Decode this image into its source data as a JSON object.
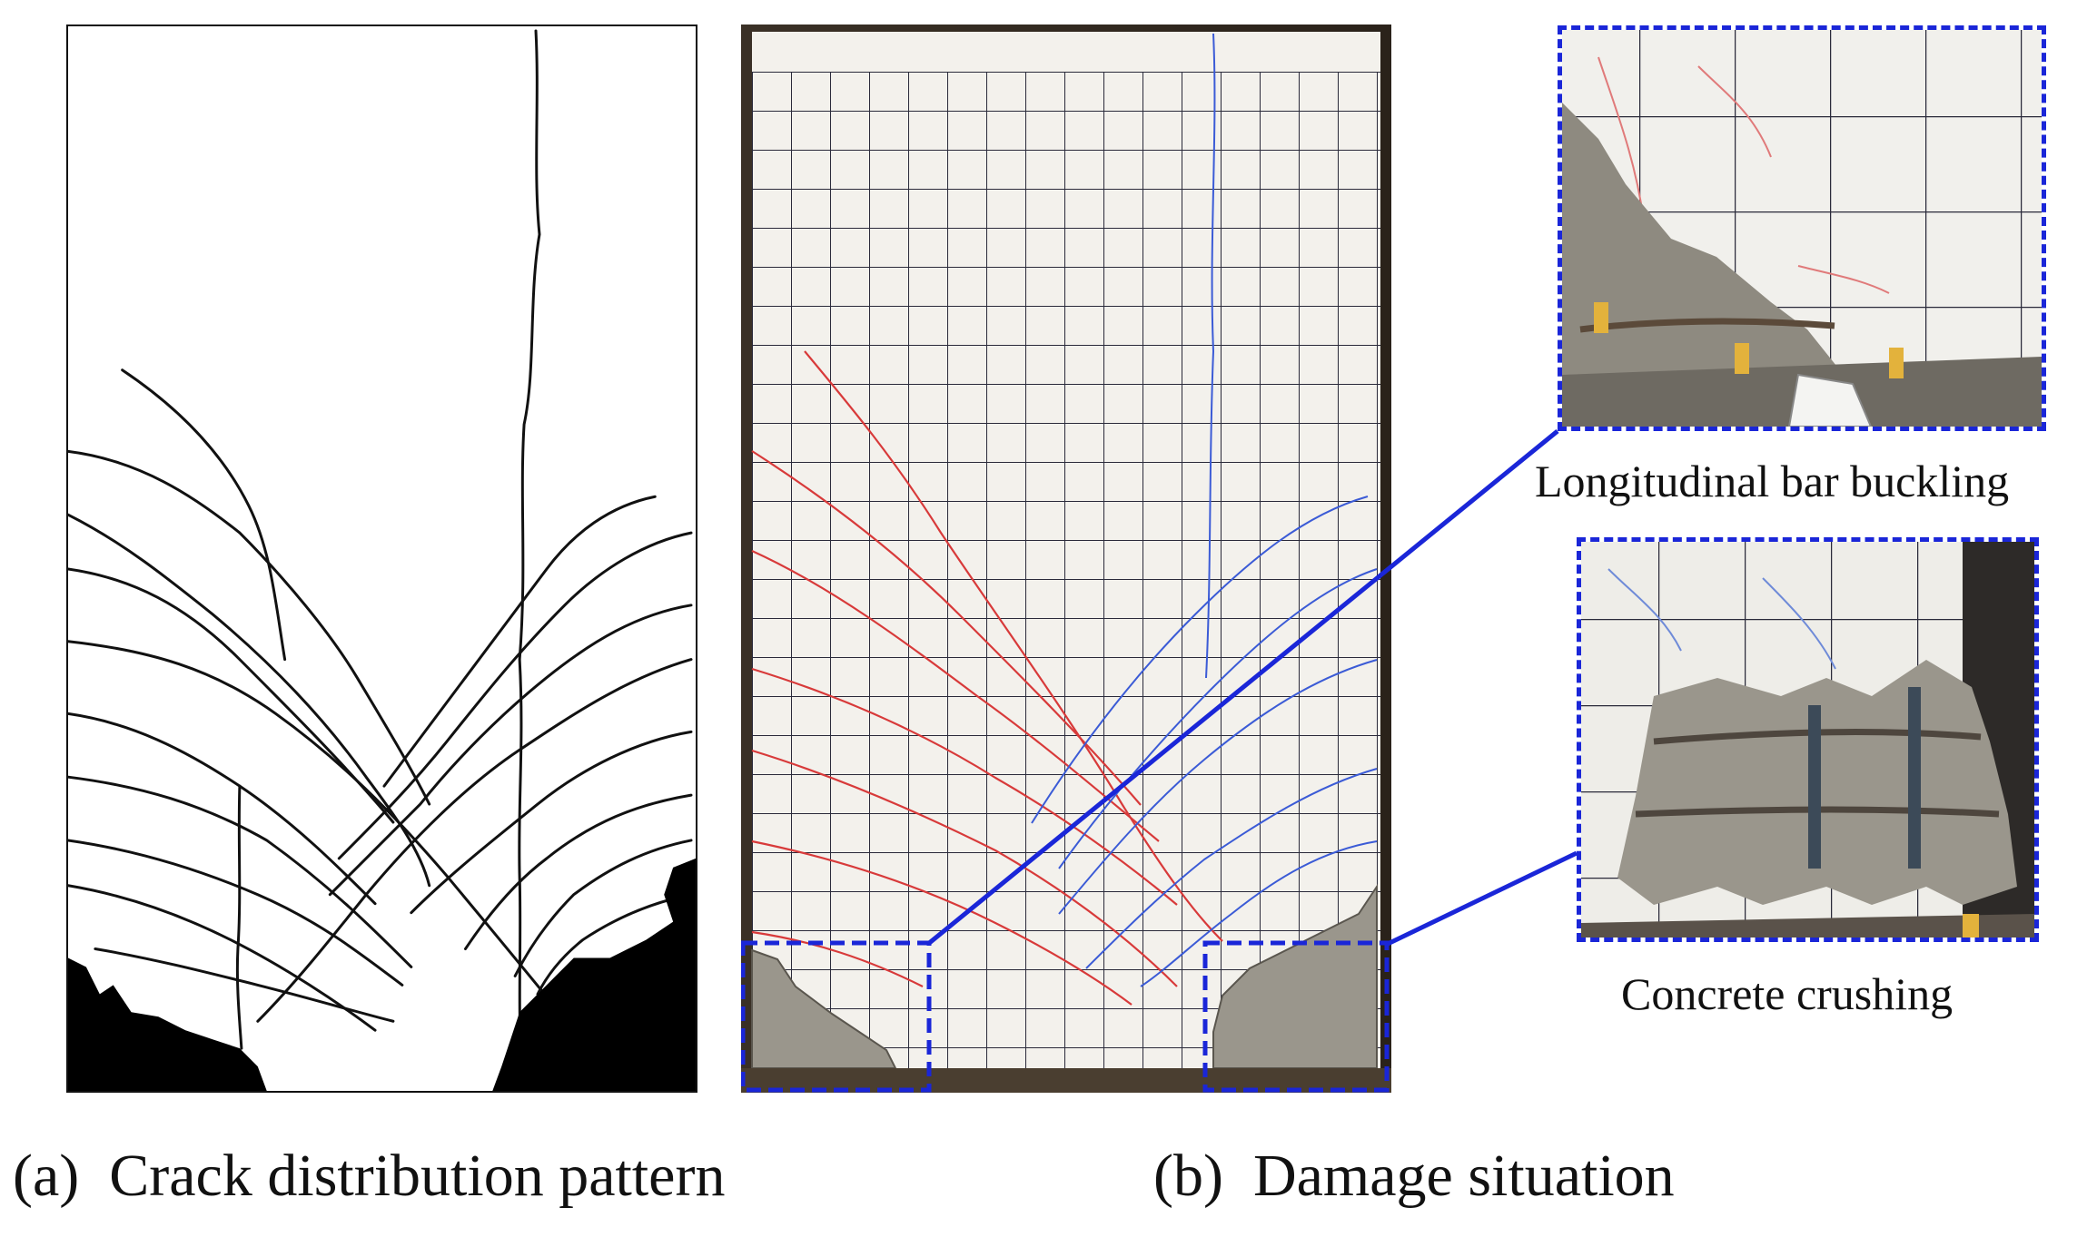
{
  "panel_a": {
    "caption_marker": "(a)",
    "caption": "Crack distribution pattern"
  },
  "panel_b": {
    "caption_marker": "(b)",
    "caption": "Damage situation",
    "detail_top_label": "Longitudinal bar buckling",
    "detail_bottom_label": "Concrete crushing"
  },
  "colors": {
    "highlight_frame": "#1a26d8",
    "crack_line": "#111111",
    "photo_crack_red": "#d83a3a",
    "photo_crack_blue": "#3b5bd6",
    "grid_line": "#2a2a3a",
    "concrete": "#9a968c"
  }
}
